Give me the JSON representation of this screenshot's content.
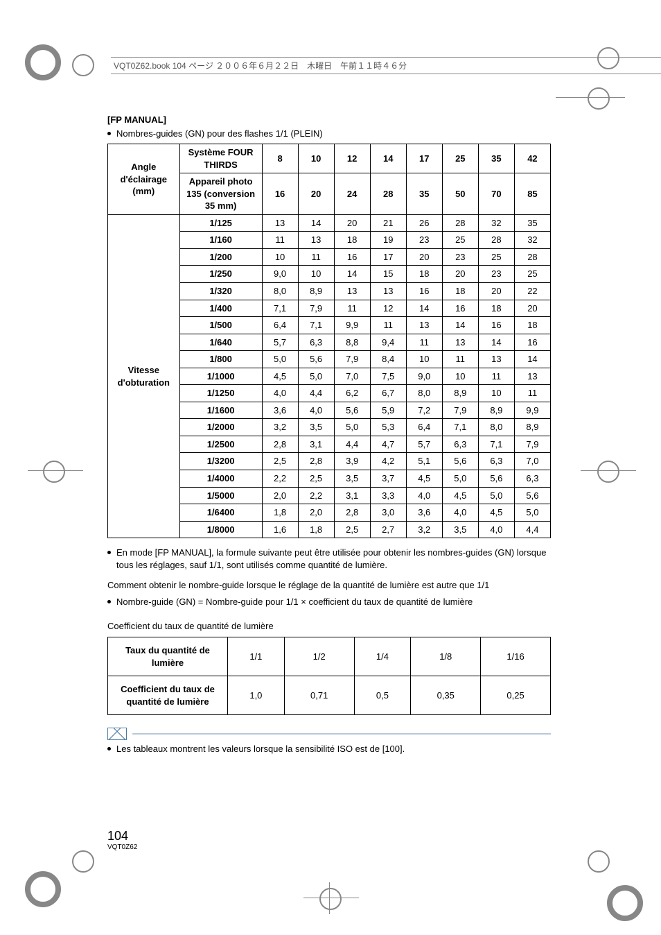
{
  "running_head": "VQT0Z62.book  104 ページ  ２００６年６月２２日　木曜日　午前１１時４６分",
  "section_title": "[FP MANUAL]",
  "bullet_intro": "Nombres-guides (GN) pour des flashes 1/1 (PLEIN)",
  "gn_table": {
    "type": "table",
    "row_header_group": "Angle d'éclairage (mm)",
    "system_label": "Système FOUR THIRDS",
    "system_values": [
      "8",
      "10",
      "12",
      "14",
      "17",
      "25",
      "35",
      "42"
    ],
    "camera_label": "Appareil photo 135 (conversion 35 mm)",
    "camera_values": [
      "16",
      "20",
      "24",
      "28",
      "35",
      "50",
      "70",
      "85"
    ],
    "vitesse_label": "Vitesse d'obturation",
    "shutter_rows": [
      {
        "s": "1/125",
        "v": [
          "13",
          "14",
          "20",
          "21",
          "26",
          "28",
          "32",
          "35"
        ]
      },
      {
        "s": "1/160",
        "v": [
          "11",
          "13",
          "18",
          "19",
          "23",
          "25",
          "28",
          "32"
        ]
      },
      {
        "s": "1/200",
        "v": [
          "10",
          "11",
          "16",
          "17",
          "20",
          "23",
          "25",
          "28"
        ]
      },
      {
        "s": "1/250",
        "v": [
          "9,0",
          "10",
          "14",
          "15",
          "18",
          "20",
          "23",
          "25"
        ]
      },
      {
        "s": "1/320",
        "v": [
          "8,0",
          "8,9",
          "13",
          "13",
          "16",
          "18",
          "20",
          "22"
        ]
      },
      {
        "s": "1/400",
        "v": [
          "7,1",
          "7,9",
          "11",
          "12",
          "14",
          "16",
          "18",
          "20"
        ]
      },
      {
        "s": "1/500",
        "v": [
          "6,4",
          "7,1",
          "9,9",
          "11",
          "13",
          "14",
          "16",
          "18"
        ]
      },
      {
        "s": "1/640",
        "v": [
          "5,7",
          "6,3",
          "8,8",
          "9,4",
          "11",
          "13",
          "14",
          "16"
        ]
      },
      {
        "s": "1/800",
        "v": [
          "5,0",
          "5,6",
          "7,9",
          "8,4",
          "10",
          "11",
          "13",
          "14"
        ]
      },
      {
        "s": "1/1000",
        "v": [
          "4,5",
          "5,0",
          "7,0",
          "7,5",
          "9,0",
          "10",
          "11",
          "13"
        ]
      },
      {
        "s": "1/1250",
        "v": [
          "4,0",
          "4,4",
          "6,2",
          "6,7",
          "8,0",
          "8,9",
          "10",
          "11"
        ]
      },
      {
        "s": "1/1600",
        "v": [
          "3,6",
          "4,0",
          "5,6",
          "5,9",
          "7,2",
          "7,9",
          "8,9",
          "9,9"
        ]
      },
      {
        "s": "1/2000",
        "v": [
          "3,2",
          "3,5",
          "5,0",
          "5,3",
          "6,4",
          "7,1",
          "8,0",
          "8,9"
        ]
      },
      {
        "s": "1/2500",
        "v": [
          "2,8",
          "3,1",
          "4,4",
          "4,7",
          "5,7",
          "6,3",
          "7,1",
          "7,9"
        ]
      },
      {
        "s": "1/3200",
        "v": [
          "2,5",
          "2,8",
          "3,9",
          "4,2",
          "5,1",
          "5,6",
          "6,3",
          "7,0"
        ]
      },
      {
        "s": "1/4000",
        "v": [
          "2,2",
          "2,5",
          "3,5",
          "3,7",
          "4,5",
          "5,0",
          "5,6",
          "6,3"
        ]
      },
      {
        "s": "1/5000",
        "v": [
          "2,0",
          "2,2",
          "3,1",
          "3,3",
          "4,0",
          "4,5",
          "5,0",
          "5,6"
        ]
      },
      {
        "s": "1/6400",
        "v": [
          "1,8",
          "2,0",
          "2,8",
          "3,0",
          "3,6",
          "4,0",
          "4,5",
          "5,0"
        ]
      },
      {
        "s": "1/8000",
        "v": [
          "1,6",
          "1,8",
          "2,5",
          "2,7",
          "3,2",
          "3,5",
          "4,0",
          "4,4"
        ]
      }
    ]
  },
  "bullet_after_table": "En mode [FP MANUAL], la formule suivante peut être utilisée pour obtenir les nombres-guides (GN) lorsque tous les réglages, sauf 1/1, sont utilisés comme quantité de lumière.",
  "howto_line1": "Comment obtenir le nombre-guide lorsque le réglage de la quantité de lumière est autre que 1/1",
  "howto_bullet": "Nombre-guide (GN) = Nombre-guide pour 1/1 × coefficient du taux de quantité de lumière",
  "coef_title": "Coefficient du taux de quantité de lumière",
  "coef_table": {
    "type": "table",
    "row1_label": "Taux du quantité de lumière",
    "row1_values": [
      "1/1",
      "1/2",
      "1/4",
      "1/8",
      "1/16"
    ],
    "row2_label": "Coefficient du taux de quantité de lumière",
    "row2_values": [
      "1,0",
      "0,71",
      "0,5",
      "0,35",
      "0,25"
    ]
  },
  "note_bullet": "Les tableaux montrent les valeurs lorsque la sensibilité ISO est de [100].",
  "page_number": "104",
  "doc_code": "VQT0Z62",
  "colors": {
    "text": "#000000",
    "reg_marks": "#878787",
    "note_accent": "#4a7aa3",
    "note_rule": "#b7c9d8",
    "background": "#ffffff"
  },
  "typography": {
    "body_fontsize": 13,
    "title_fontsize": 13,
    "pagenum_fontsize": 18,
    "doccode_fontsize": 10
  }
}
